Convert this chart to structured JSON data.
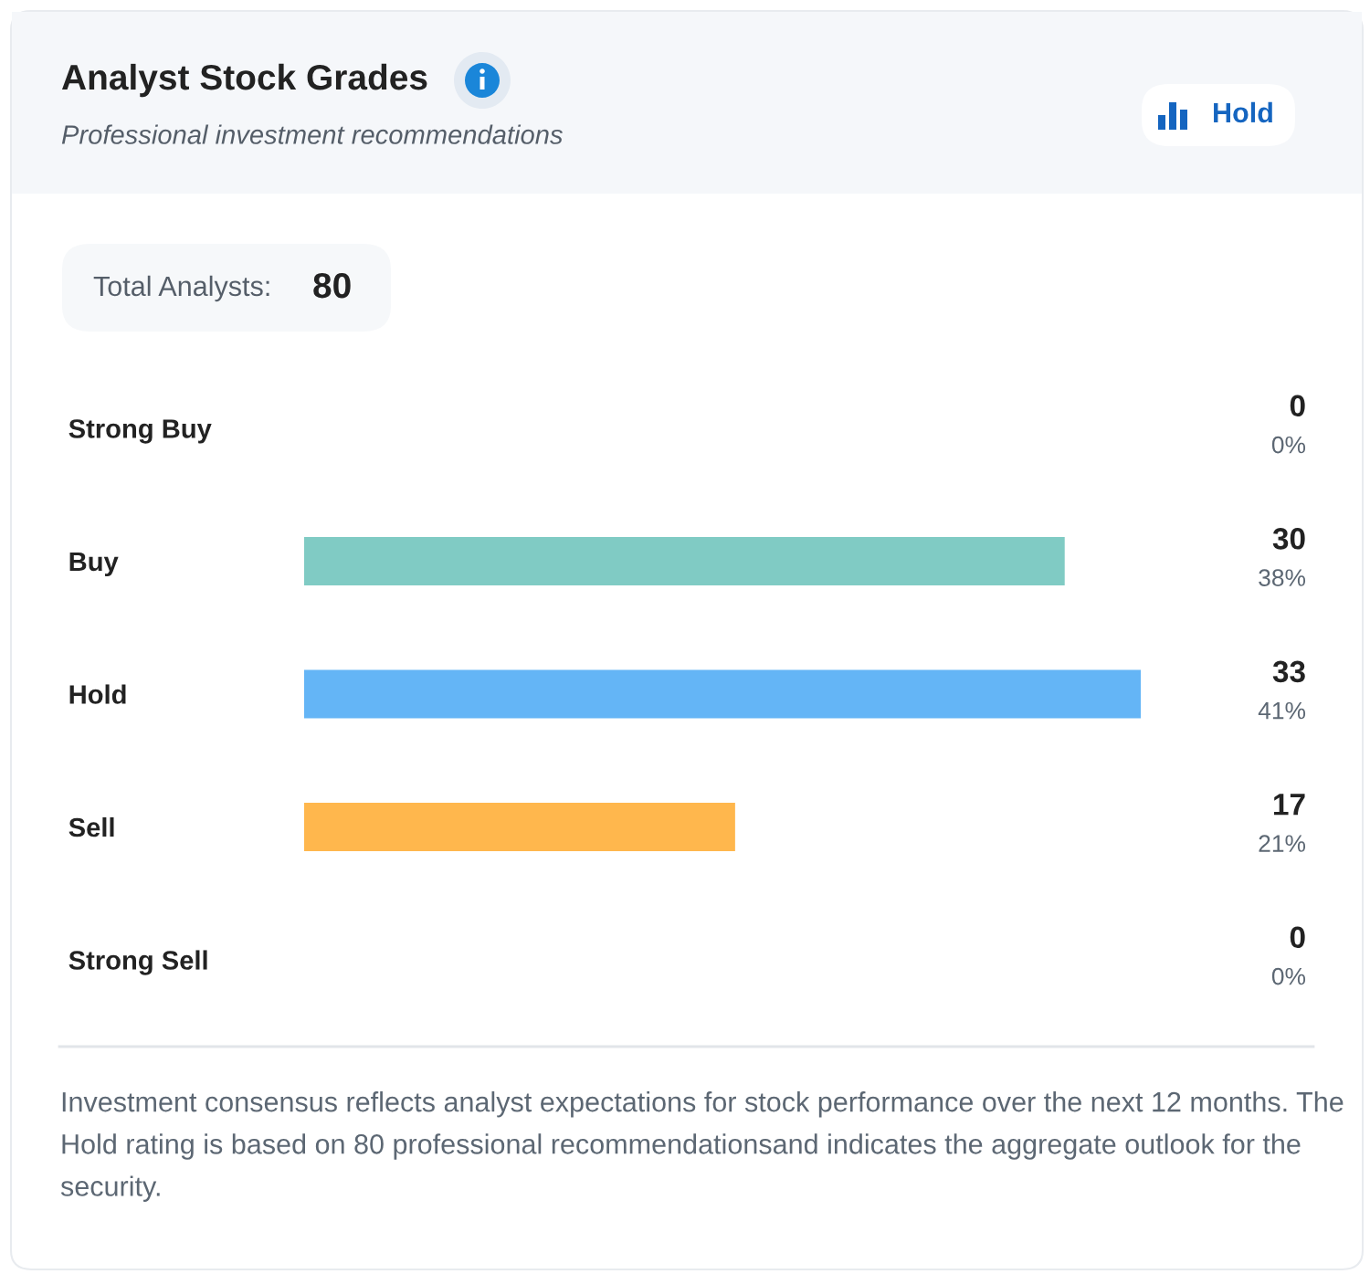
{
  "chart_data": {
    "type": "bar",
    "orientation": "horizontal",
    "title": "Analyst Stock Grades",
    "subtitle": "Professional investment recommendations",
    "categories": [
      "Strong Buy",
      "Buy",
      "Hold",
      "Sell",
      "Strong Sell"
    ],
    "values": [
      0,
      30,
      33,
      17,
      0
    ],
    "colors": [
      null,
      "#80cbc4",
      "#64b5f6",
      "#ffb74d",
      null
    ],
    "value_labels": [
      "0\n0%",
      "30\n38%",
      "33\n41%",
      "17\n21%",
      "0\n0%"
    ],
    "annotations": [
      "Hold",
      "Total Analysts: 80",
      "Investment consensus reflects analyst expectations for stock performance over the next 12 months. The Hold rating is based on 80 professional recommendationsand indicates the aggregate outlook for the security."
    ],
    "tick_labels": "y"
  }
}
